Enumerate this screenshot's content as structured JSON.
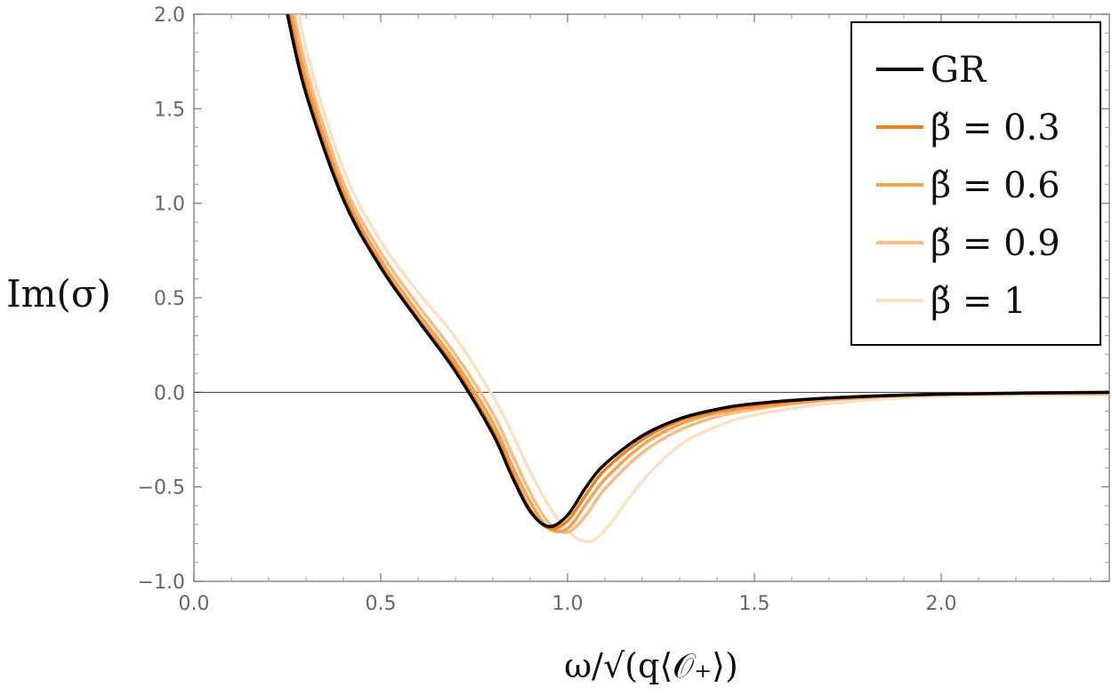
{
  "chart_data": {
    "type": "line",
    "xlabel": "ω/√(q⟨𝒪₊⟩)",
    "ylabel": "Im(σ)",
    "xlim": [
      0.0,
      2.45
    ],
    "ylim": [
      -1.0,
      2.0
    ],
    "x_ticks": [
      "0.0",
      "0.5",
      "1.0",
      "1.5",
      "2.0"
    ],
    "y_ticks": [
      "2.0",
      "1.5",
      "1.0",
      "0.5",
      "0.0",
      "−0.5",
      "−1.0"
    ],
    "zero_line": true,
    "grid": false,
    "legend_position": "top-right",
    "series": [
      {
        "name": "GR",
        "color": "#000000",
        "x": [
          0.25,
          0.3,
          0.4,
          0.5,
          0.6,
          0.7,
          0.8,
          0.85,
          0.9,
          0.95,
          1.0,
          1.05,
          1.1,
          1.2,
          1.3,
          1.4,
          1.5,
          1.7,
          2.0,
          2.45
        ],
        "y": [
          2.0,
          1.58,
          1.02,
          0.66,
          0.38,
          0.11,
          -0.22,
          -0.44,
          -0.63,
          -0.71,
          -0.65,
          -0.5,
          -0.38,
          -0.23,
          -0.14,
          -0.09,
          -0.06,
          -0.03,
          -0.01,
          0.0
        ]
      },
      {
        "name": "β̃ = 0.3",
        "color": "#f07f1f",
        "x": [
          0.25,
          0.3,
          0.4,
          0.5,
          0.6,
          0.7,
          0.8,
          0.85,
          0.9,
          0.95,
          1.0,
          1.05,
          1.1,
          1.2,
          1.3,
          1.4,
          1.5,
          1.7,
          2.0,
          2.45
        ],
        "y": [
          2.05,
          1.61,
          1.04,
          0.67,
          0.39,
          0.13,
          -0.2,
          -0.42,
          -0.62,
          -0.72,
          -0.68,
          -0.54,
          -0.41,
          -0.25,
          -0.15,
          -0.1,
          -0.07,
          -0.03,
          -0.01,
          0.0
        ]
      },
      {
        "name": "β̃ = 0.6",
        "color": "#f7a04f",
        "x": [
          0.25,
          0.3,
          0.4,
          0.5,
          0.6,
          0.7,
          0.8,
          0.85,
          0.9,
          0.95,
          1.0,
          1.05,
          1.1,
          1.2,
          1.3,
          1.4,
          1.5,
          1.7,
          2.0,
          2.45
        ],
        "y": [
          2.12,
          1.66,
          1.07,
          0.7,
          0.42,
          0.16,
          -0.16,
          -0.38,
          -0.58,
          -0.72,
          -0.72,
          -0.59,
          -0.46,
          -0.28,
          -0.17,
          -0.11,
          -0.08,
          -0.04,
          -0.01,
          0.0
        ]
      },
      {
        "name": "β̃ = 0.9",
        "color": "#fbbc80",
        "x": [
          0.25,
          0.3,
          0.4,
          0.5,
          0.6,
          0.7,
          0.8,
          0.85,
          0.9,
          0.95,
          1.0,
          1.05,
          1.1,
          1.2,
          1.3,
          1.4,
          1.5,
          1.7,
          2.0,
          2.45
        ],
        "y": [
          2.2,
          1.72,
          1.11,
          0.74,
          0.46,
          0.2,
          -0.11,
          -0.32,
          -0.53,
          -0.69,
          -0.74,
          -0.65,
          -0.51,
          -0.32,
          -0.2,
          -0.13,
          -0.09,
          -0.04,
          -0.01,
          -0.01
        ]
      },
      {
        "name": "β̃ = 1",
        "color": "#fde0c2",
        "x": [
          0.25,
          0.3,
          0.4,
          0.5,
          0.6,
          0.7,
          0.8,
          0.85,
          0.9,
          0.95,
          1.0,
          1.05,
          1.1,
          1.2,
          1.3,
          1.4,
          1.5,
          1.7,
          2.0,
          2.45
        ],
        "y": [
          2.35,
          1.82,
          1.18,
          0.8,
          0.53,
          0.29,
          -0.02,
          -0.21,
          -0.42,
          -0.6,
          -0.73,
          -0.79,
          -0.73,
          -0.47,
          -0.28,
          -0.18,
          -0.12,
          -0.06,
          -0.02,
          -0.01
        ]
      }
    ]
  }
}
